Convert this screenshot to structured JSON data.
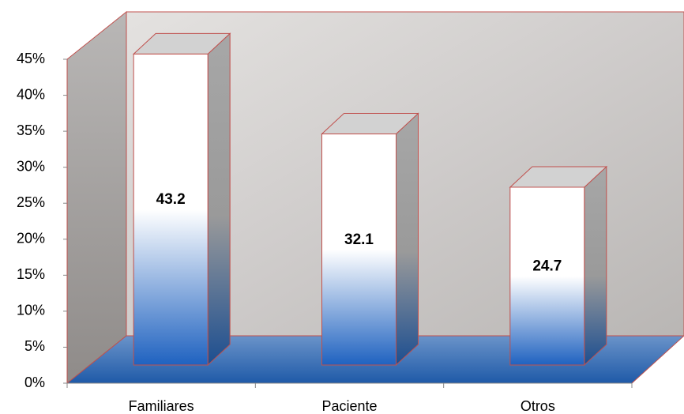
{
  "chart_data": {
    "type": "bar3d",
    "categories": [
      "Familiares",
      "Paciente",
      "Otros"
    ],
    "values": [
      43.2,
      32.1,
      24.7
    ],
    "ylim": [
      0,
      45
    ],
    "yticks": [
      {
        "value": 0,
        "label": "0%"
      },
      {
        "value": 5,
        "label": "5%"
      },
      {
        "value": 10,
        "label": "10%"
      },
      {
        "value": 15,
        "label": "15%"
      },
      {
        "value": 20,
        "label": "20%"
      },
      {
        "value": 25,
        "label": "25%"
      },
      {
        "value": 30,
        "label": "30%"
      },
      {
        "value": 35,
        "label": "35%"
      },
      {
        "value": 40,
        "label": "40%"
      },
      {
        "value": 45,
        "label": "45%"
      }
    ]
  }
}
